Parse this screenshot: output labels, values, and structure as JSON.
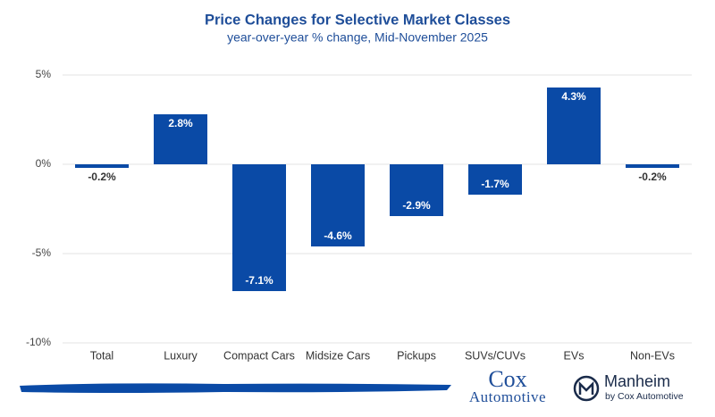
{
  "chart_data": {
    "type": "bar",
    "title": "Price Changes for Selective Market Classes",
    "subtitle": "year-over-year % change, Mid-November 2025",
    "categories": [
      "Total",
      "Luxury",
      "Compact Cars",
      "Midsize Cars",
      "Pickups",
      "SUVs/CUVs",
      "EVs",
      "Non-EVs"
    ],
    "values": [
      -0.2,
      2.8,
      -7.1,
      -4.6,
      -2.9,
      -1.7,
      4.3,
      -0.2
    ],
    "value_labels": [
      "-0.2%",
      "2.8%",
      "-7.1%",
      "-4.6%",
      "-2.9%",
      "-1.7%",
      "4.3%",
      "-0.2%"
    ],
    "color": "#0a4aa6",
    "ylim": [
      -10,
      5
    ],
    "yticks": [
      {
        "value": 5,
        "label": "5%"
      },
      {
        "value": 0,
        "label": "0%"
      },
      {
        "value": -5,
        "label": "-5%"
      },
      {
        "value": -10,
        "label": "-10%"
      }
    ],
    "grid": true
  },
  "footer": {
    "cox_logo_top": "Cox",
    "cox_logo_bottom": "Automotive",
    "manheim_logo": "Manheim",
    "manheim_sub": "by Cox Automotive"
  }
}
